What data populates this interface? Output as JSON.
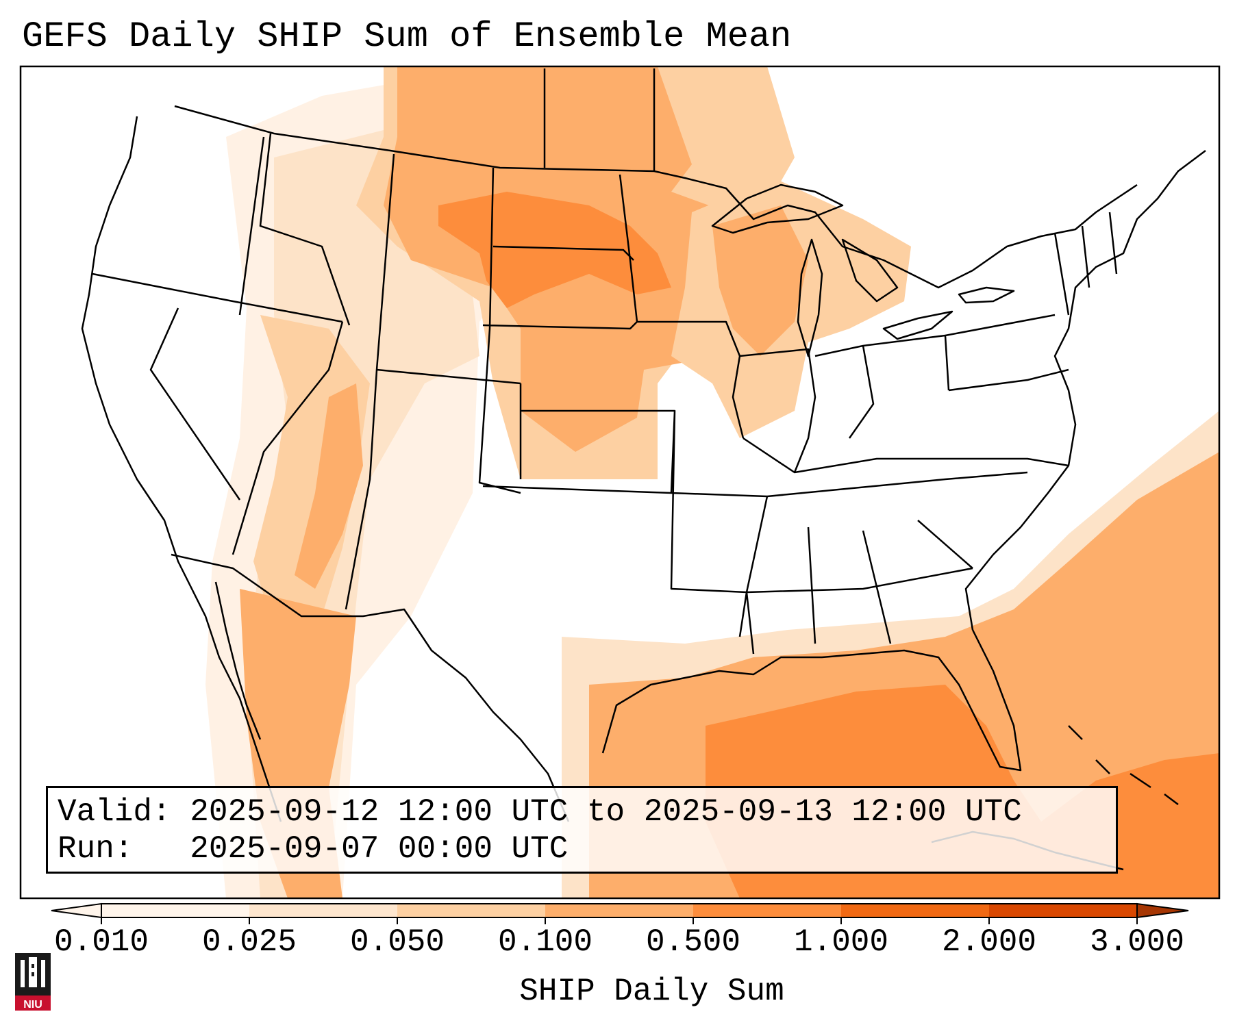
{
  "title": "GEFS Daily SHIP Sum of Ensemble Mean",
  "info": {
    "valid_label": "Valid:",
    "valid_value": "2025-09-12 12:00 UTC to 2025-09-13 12:00 UTC",
    "run_label": "Run:",
    "run_value": "2025-09-07 00:00 UTC"
  },
  "colorbar": {
    "label": "SHIP Daily Sum",
    "ticks": [
      "0.010",
      "0.025",
      "0.050",
      "0.100",
      "0.500",
      "1.000",
      "2.000",
      "3.000"
    ],
    "colors": [
      "#fff5eb",
      "#fee6ce",
      "#fdd0a2",
      "#fdae6b",
      "#fd8d3c",
      "#f16913",
      "#d94801",
      "#a63603"
    ],
    "extend": "both"
  },
  "logo": {
    "text": "NIU"
  },
  "colors": {
    "map_border": "#000000",
    "background": "#ffffff"
  }
}
